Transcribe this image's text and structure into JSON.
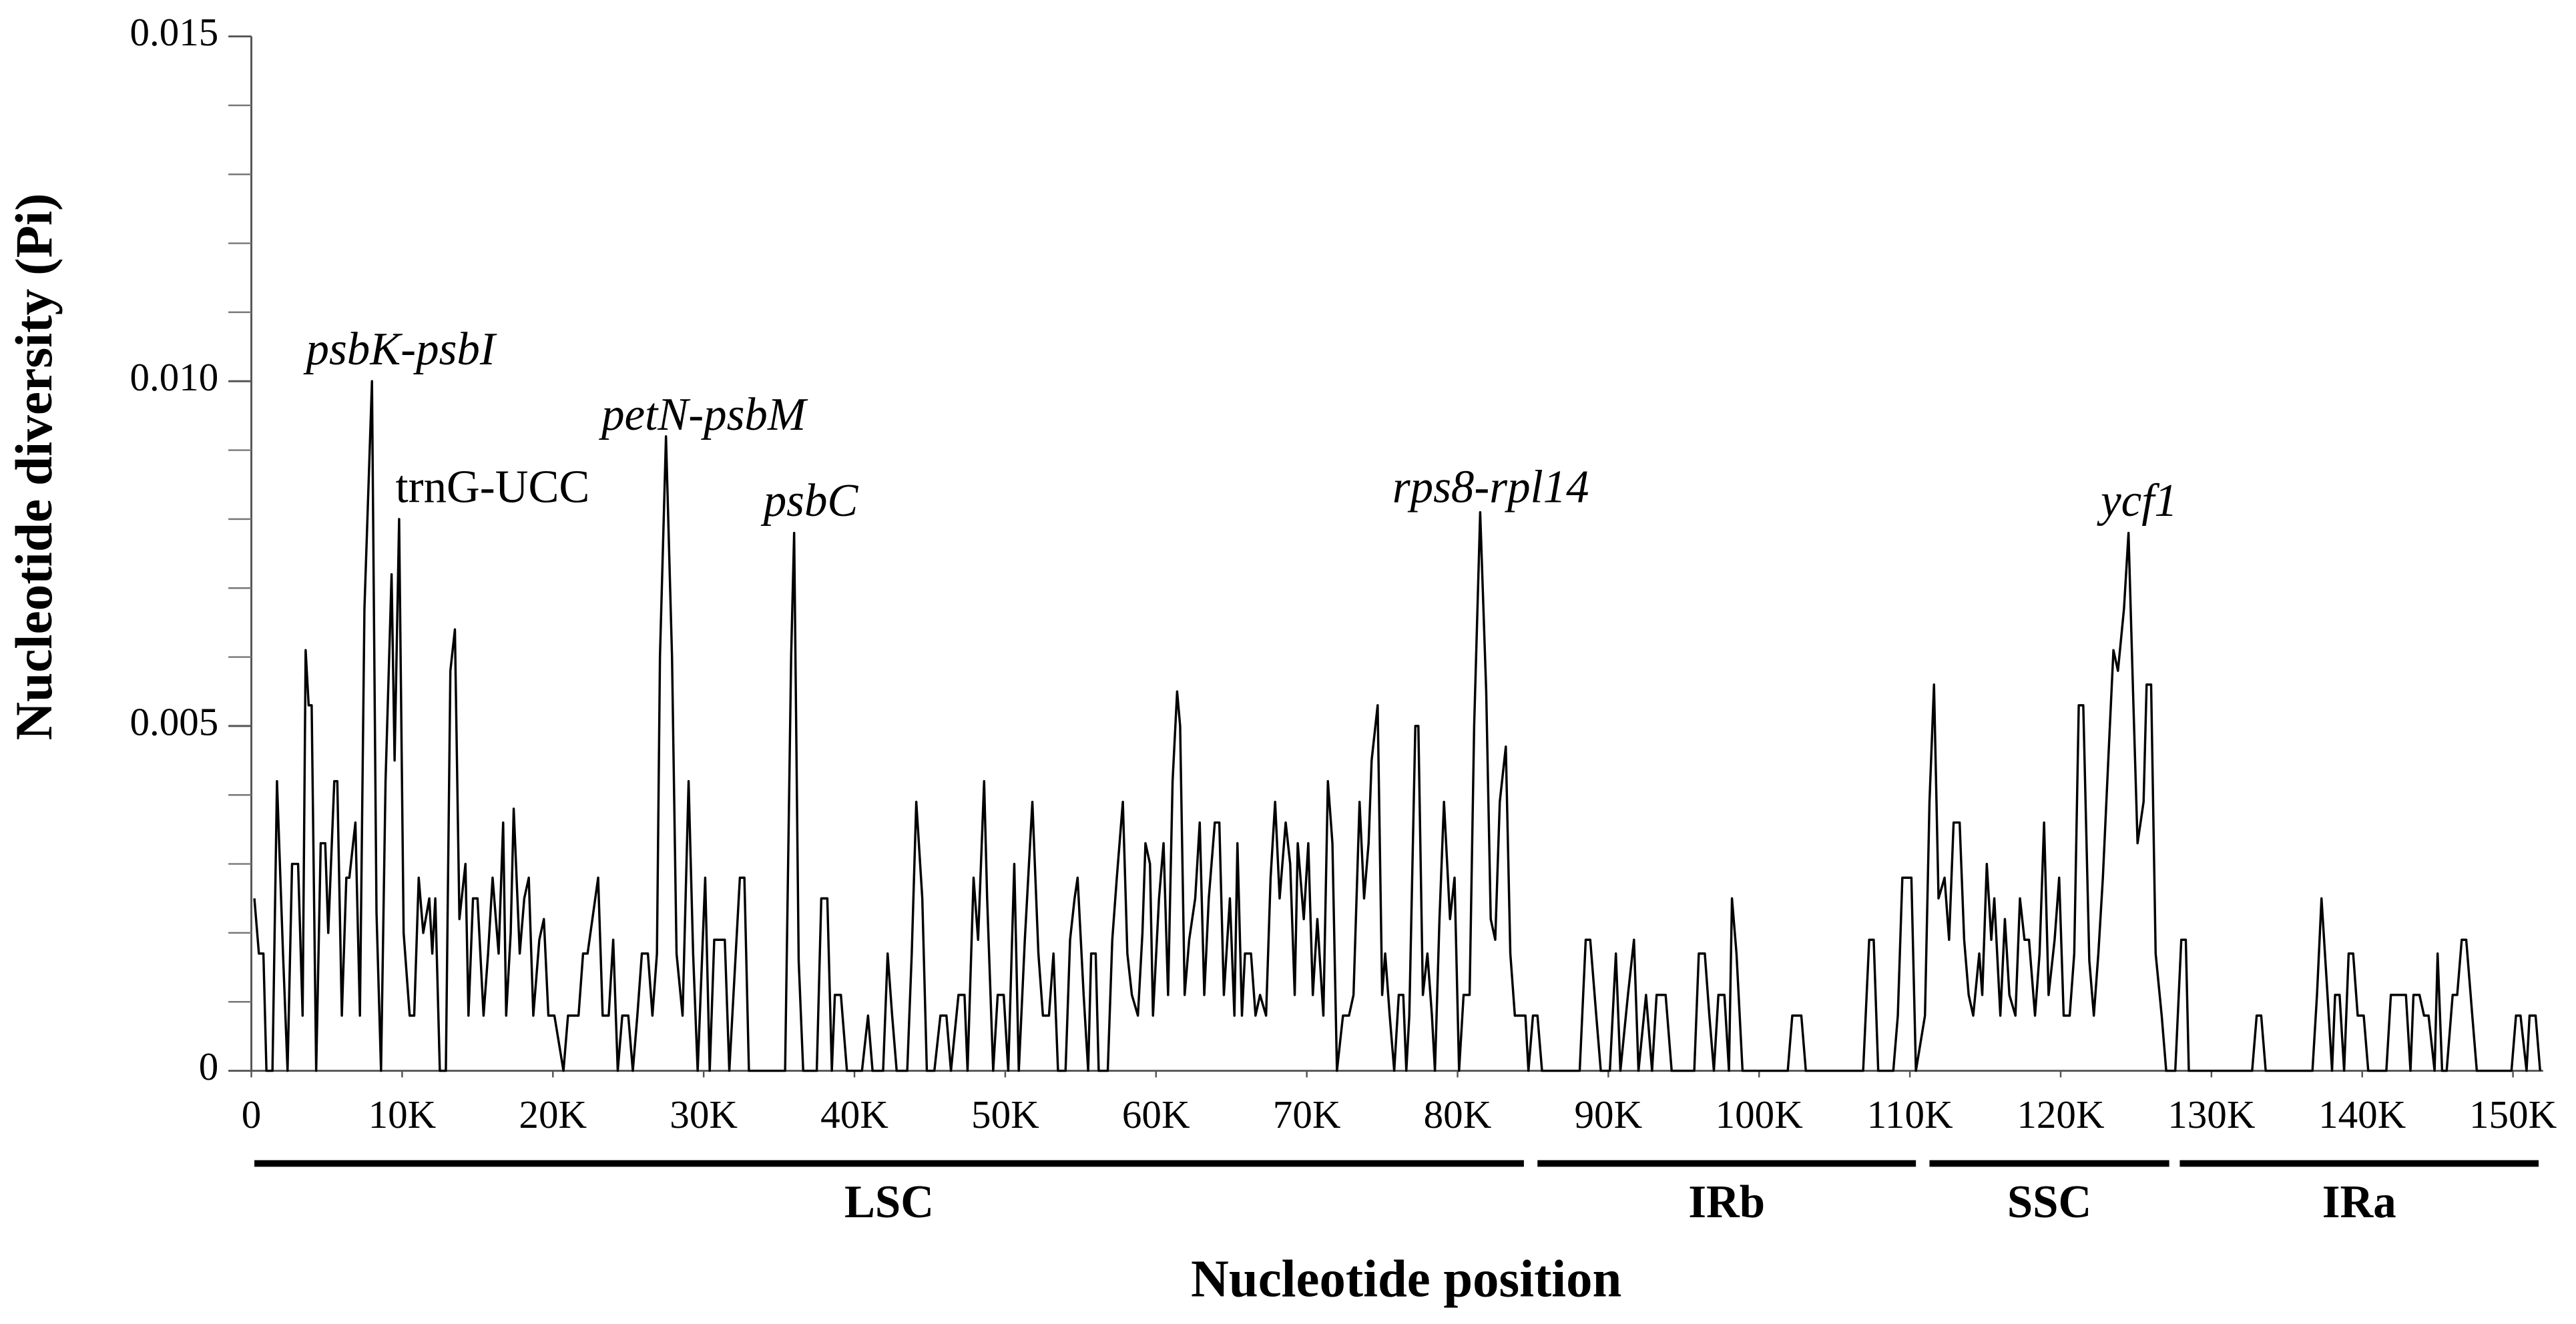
{
  "chart_data": {
    "type": "line",
    "xlabel": "Nucleotide position",
    "ylabel": "Nucleotide diversity (Pi)",
    "color": "#000000",
    "xlim": [
      0,
      152000
    ],
    "ylim": [
      0,
      0.015
    ],
    "xticks": [
      0,
      {
        "value": 10000,
        "label": "10K"
      },
      {
        "value": 20000,
        "label": "20K"
      },
      {
        "value": 30000,
        "label": "30K"
      },
      {
        "value": 40000,
        "label": "40K"
      },
      {
        "value": 50000,
        "label": "50K"
      },
      {
        "value": 60000,
        "label": "60K"
      },
      {
        "value": 70000,
        "label": "70K"
      },
      {
        "value": 80000,
        "label": "80K"
      },
      {
        "value": 90000,
        "label": "90K"
      },
      {
        "value": 100000,
        "label": "100K"
      },
      {
        "value": 110000,
        "label": "110K"
      },
      {
        "value": 120000,
        "label": "120K"
      },
      {
        "value": 130000,
        "label": "130K"
      },
      {
        "value": 140000,
        "label": "140K"
      },
      {
        "value": 150000,
        "label": "150K"
      }
    ],
    "yticks": [
      0,
      0.005,
      {
        "value": 0.01,
        "label": "0.010"
      },
      0.015
    ],
    "yminor_ticks": [
      0.001,
      0.002,
      0.003,
      0.004,
      0.006,
      0.007,
      0.008,
      0.009,
      0.011,
      0.012,
      0.013,
      0.014
    ],
    "regions": [
      {
        "name": "LSC",
        "start": 200,
        "end": 84400
      },
      {
        "name": "IRb",
        "start": 85300,
        "end": 110400
      },
      {
        "name": "SSC",
        "start": 111300,
        "end": 127200
      },
      {
        "name": "IRa",
        "start": 127900,
        "end": 151700
      }
    ],
    "annotations": [
      {
        "text": "psbK-psbI",
        "x": 9900,
        "y": 0.0104,
        "italic": true
      },
      {
        "text": "trnG-UCC",
        "x": 16000,
        "y": 0.0084,
        "italic": false
      },
      {
        "text": "petN-psbM",
        "x": 30000,
        "y": 0.00945,
        "italic": true
      },
      {
        "text": "psbC",
        "x": 37100,
        "y": 0.0082,
        "italic": true
      },
      {
        "text": "rps8-rpl14",
        "x": 82200,
        "y": 0.0084,
        "italic": true
      },
      {
        "text": "ycf1",
        "x": 125200,
        "y": 0.0082,
        "italic": true
      }
    ],
    "x": [
      200,
      500,
      800,
      1000,
      1400,
      1700,
      2100,
      2400,
      2700,
      3100,
      3400,
      3600,
      3800,
      4000,
      4300,
      4600,
      4900,
      5100,
      5500,
      5700,
      6000,
      6300,
      6500,
      6900,
      7200,
      7500,
      8000,
      8300,
      8600,
      8900,
      9300,
      9500,
      9800,
      10100,
      10500,
      10800,
      11100,
      11400,
      11800,
      12000,
      12200,
      12500,
      12900,
      13200,
      13500,
      13800,
      14200,
      14400,
      14700,
      15000,
      15400,
      15700,
      16000,
      16400,
      16700,
      16900,
      17200,
      17400,
      17800,
      18100,
      18400,
      18700,
      19100,
      19400,
      19700,
      20100,
      20700,
      21000,
      21700,
      22000,
      22300,
      23000,
      23300,
      23700,
      24000,
      24300,
      24600,
      25000,
      25300,
      25600,
      25900,
      26300,
      26600,
      26900,
      27100,
      27500,
      27900,
      28200,
      28600,
      29000,
      29300,
      29600,
      30100,
      30400,
      30700,
      31400,
      31700,
      32400,
      32700,
      33000,
      35400,
      35800,
      36000,
      36300,
      36600,
      37500,
      37800,
      38200,
      38500,
      38700,
      39100,
      39500,
      40500,
      40900,
      41200,
      41900,
      42200,
      42500,
      42800,
      43500,
      43800,
      44100,
      44500,
      44800,
      45300,
      45700,
      46100,
      46400,
      46900,
      47300,
      47500,
      47900,
      48200,
      48600,
      48800,
      49200,
      49500,
      49900,
      50200,
      50600,
      50900,
      51300,
      51800,
      52200,
      52500,
      52900,
      53200,
      53500,
      54000,
      54300,
      54600,
      54800,
      55200,
      55500,
      55700,
      56000,
      56200,
      56800,
      57100,
      57400,
      57800,
      58100,
      58400,
      58800,
      59100,
      59300,
      59600,
      59800,
      60200,
      60500,
      60800,
      61100,
      61400,
      61600,
      61900,
      62200,
      62600,
      62900,
      63200,
      63500,
      63900,
      64200,
      64500,
      64900,
      65200,
      65400,
      65700,
      65900,
      66300,
      66600,
      66900,
      67300,
      67600,
      67900,
      68200,
      68600,
      68900,
      69200,
      69400,
      69800,
      70100,
      70400,
      70700,
      71100,
      71400,
      71700,
      72000,
      72400,
      72800,
      73100,
      73500,
      73800,
      74100,
      74300,
      74700,
      75000,
      75200,
      75500,
      75800,
      76100,
      76400,
      76600,
      76800,
      77200,
      77400,
      77700,
      78000,
      78300,
      78500,
      78800,
      79100,
      79500,
      79800,
      80100,
      80400,
      80800,
      81100,
      81500,
      81900,
      82200,
      82500,
      82800,
      83200,
      83500,
      83800,
      84500,
      84700,
      85000,
      85300,
      85600,
      88100,
      88500,
      88800,
      89200,
      89500,
      90100,
      90500,
      90800,
      91300,
      91700,
      92000,
      92500,
      92900,
      93200,
      93800,
      94200,
      95700,
      96000,
      96400,
      96700,
      97000,
      97300,
      97700,
      98000,
      98200,
      98500,
      98900,
      101900,
      102200,
      102800,
      103100,
      106900,
      107300,
      107600,
      107900,
      108900,
      109200,
      109500,
      110100,
      110400,
      111000,
      111300,
      111600,
      111900,
      112300,
      112600,
      112900,
      113300,
      113600,
      113900,
      114200,
      114600,
      114800,
      115100,
      115400,
      115600,
      116000,
      116300,
      116600,
      117000,
      117300,
      117600,
      117900,
      118300,
      118600,
      118900,
      119200,
      119600,
      119900,
      120200,
      120600,
      120900,
      121200,
      121500,
      121900,
      122200,
      122500,
      122800,
      123200,
      123500,
      123800,
      124200,
      124500,
      124800,
      125100,
      125500,
      125700,
      126000,
      126300,
      126700,
      127000,
      127600,
      128000,
      128300,
      128500,
      132700,
      133000,
      133300,
      133600,
      136700,
      137000,
      137300,
      137700,
      138000,
      138200,
      138500,
      138800,
      139100,
      139400,
      139700,
      140100,
      140400,
      141600,
      141900,
      142900,
      143200,
      143400,
      143800,
      144100,
      144400,
      144800,
      145000,
      145300,
      145600,
      146000,
      146300,
      146600,
      146900,
      147300,
      147600,
      149900,
      150200,
      150500,
      150900,
      151100,
      151500,
      151800
    ],
    "values": [
      0.0025,
      0.0017,
      0.0017,
      0,
      0,
      0.0042,
      0.0017,
      0,
      0.003,
      0.003,
      0.0008,
      0.0061,
      0.0053,
      0.0053,
      0,
      0.0033,
      0.0033,
      0.002,
      0.0042,
      0.0042,
      0.0008,
      0.0028,
      0.0028,
      0.0036,
      0.0008,
      0.0067,
      0.01,
      0.0023,
      0,
      0.0042,
      0.0072,
      0.0045,
      0.008,
      0.002,
      0.0008,
      0.0008,
      0.0028,
      0.002,
      0.0025,
      0.0017,
      0.0025,
      0,
      0,
      0.0058,
      0.0064,
      0.0022,
      0.003,
      0.0008,
      0.0025,
      0.0025,
      0.0008,
      0.0017,
      0.0028,
      0.0017,
      0.0036,
      0.0008,
      0.002,
      0.0038,
      0.0017,
      0.0025,
      0.0028,
      0.0008,
      0.0019,
      0.0022,
      0.0008,
      0.0008,
      0,
      0.0008,
      0.0008,
      0.0017,
      0.0017,
      0.0028,
      0.0008,
      0.0008,
      0.0019,
      0,
      0.0008,
      0.0008,
      0,
      0.0008,
      0.0017,
      0.0017,
      0.0008,
      0.0017,
      0.006,
      0.0092,
      0.006,
      0.0017,
      0.0008,
      0.0042,
      0.0017,
      0,
      0.0028,
      0,
      0.0019,
      0.0019,
      0,
      0.0028,
      0.0028,
      0,
      0,
      0.006,
      0.0078,
      0.0016,
      0,
      0,
      0.0025,
      0.0025,
      0,
      0.0011,
      0.0011,
      0,
      0,
      0.0008,
      0,
      0,
      0.0017,
      0.0008,
      0,
      0,
      0.0017,
      0.0039,
      0.0025,
      0,
      0,
      0.0008,
      0.0008,
      0,
      0.0011,
      0.0011,
      0,
      0.0028,
      0.0019,
      0.0042,
      0.0025,
      0,
      0.0011,
      0.0011,
      0,
      0.003,
      0,
      0.0019,
      0.0039,
      0.0017,
      0.0008,
      0.0008,
      0.0017,
      0,
      0,
      0.0019,
      0.0025,
      0.0028,
      0.0011,
      0,
      0.0017,
      0.0017,
      0,
      0,
      0.0019,
      0.0028,
      0.0039,
      0.0017,
      0.0011,
      0.0008,
      0.002,
      0.0033,
      0.003,
      0.0008,
      0.0025,
      0.0033,
      0.0011,
      0.0042,
      0.0055,
      0.005,
      0.0011,
      0.0019,
      0.0025,
      0.0036,
      0.0011,
      0.0025,
      0.0036,
      0.0036,
      0.0011,
      0.0025,
      0.0008,
      0.0033,
      0.0008,
      0.0017,
      0.0017,
      0.0008,
      0.0011,
      0.0008,
      0.0028,
      0.0039,
      0.0025,
      0.0036,
      0.003,
      0.0011,
      0.0033,
      0.0022,
      0.0033,
      0.0011,
      0.0022,
      0.0008,
      0.0042,
      0.0033,
      0,
      0.0008,
      0.0008,
      0.0011,
      0.0039,
      0.0025,
      0.0033,
      0.0045,
      0.0053,
      0.0011,
      0.0017,
      0.0008,
      0,
      0.0011,
      0.0011,
      0,
      0.0008,
      0.005,
      0.005,
      0.0011,
      0.0017,
      0.0008,
      0,
      0.0022,
      0.0039,
      0.0022,
      0.0028,
      0,
      0.0011,
      0.0011,
      0.005,
      0.0081,
      0.0055,
      0.0022,
      0.0019,
      0.0039,
      0.0047,
      0.0017,
      0.0008,
      0.0008,
      0,
      0.0008,
      0.0008,
      0,
      0,
      0.0019,
      0.0019,
      0.0008,
      0,
      0,
      0.0017,
      0,
      0.0011,
      0.0019,
      0,
      0.0011,
      0,
      0.0011,
      0.0011,
      0,
      0,
      0.0017,
      0.0017,
      0.0008,
      0,
      0.0011,
      0.0011,
      0,
      0.0025,
      0.0017,
      0,
      0,
      0.0008,
      0.0008,
      0,
      0,
      0.0019,
      0.0019,
      0,
      0,
      0.0008,
      0.0028,
      0.0028,
      0,
      0.0008,
      0.0039,
      0.0056,
      0.0025,
      0.0028,
      0.0019,
      0.0036,
      0.0036,
      0.0019,
      0.0011,
      0.0008,
      0.0017,
      0.0011,
      0.003,
      0.0019,
      0.0025,
      0.0008,
      0.0022,
      0.0011,
      0.0008,
      0.0025,
      0.0019,
      0.0019,
      0.0008,
      0.0017,
      0.0036,
      0.0011,
      0.0019,
      0.0028,
      0.0008,
      0.0008,
      0.0017,
      0.0053,
      0.0053,
      0.0016,
      0.0008,
      0.0017,
      0.0028,
      0.0047,
      0.0061,
      0.0058,
      0.0067,
      0.0078,
      0.0055,
      0.0033,
      0.0039,
      0.0056,
      0.0056,
      0.0017,
      0.0008,
      0,
      0,
      0.0019,
      0.0019,
      0,
      0,
      0.0008,
      0.0008,
      0,
      0,
      0.0011,
      0.0025,
      0.0011,
      0,
      0.0011,
      0.0011,
      0,
      0.0017,
      0.0017,
      0.0008,
      0.0008,
      0,
      0,
      0.0011,
      0.0011,
      0,
      0.0011,
      0.0011,
      0.0008,
      0.0008,
      0,
      0.0017,
      0,
      0,
      0.0011,
      0.0011,
      0.0019,
      0.0019,
      0.0008,
      0,
      0,
      0.0008,
      0.0008,
      0,
      0.0008,
      0.0008,
      0
    ]
  }
}
